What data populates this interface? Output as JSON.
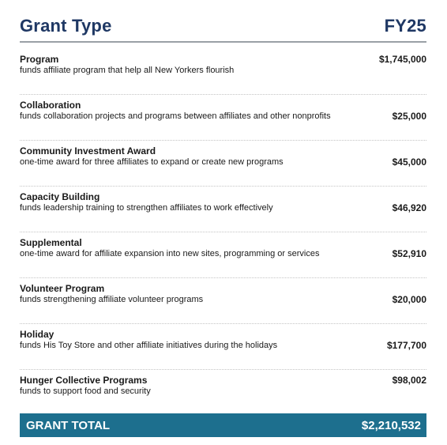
{
  "header": {
    "left": "Grant Type",
    "right": "FY25"
  },
  "rows": [
    {
      "name": "Program",
      "description": "funds affiliate program that help all New Yorkers flourish",
      "amount": "$1,745,000"
    },
    {
      "name": "Collaboration",
      "description": "funds collaboration projects and programs between affiliates and other nonprofits",
      "amount": "$25,000"
    },
    {
      "name": "Community Investment Award",
      "description": "one-time award for three affiliates to expand or create new programs",
      "amount": "$45,000"
    },
    {
      "name": "Capacity Building",
      "description": "funds leadership training to strengthen affiliates to work effectively",
      "amount": "$46,920"
    },
    {
      "name": "Supplemental",
      "description": "one-time award for affiliate expansion into new sites, programming or services",
      "amount": "$52,910"
    },
    {
      "name": "Volunteer Program",
      "description": "funds strengthening affiliate volunteer programs",
      "amount": "$20,000"
    },
    {
      "name": "Holiday",
      "description": "funds His Toy Store and other affiliate initiatives during the holidays",
      "amount": "$177,700"
    },
    {
      "name": "Hunger Collective Programs",
      "description": "funds to support food and security",
      "amount": "$98,002"
    }
  ],
  "total": {
    "label": "GRANT TOTAL",
    "amount": "$2,210,532"
  },
  "colors": {
    "heading": "#1f3864",
    "total_bar": "#1d6f8e"
  }
}
